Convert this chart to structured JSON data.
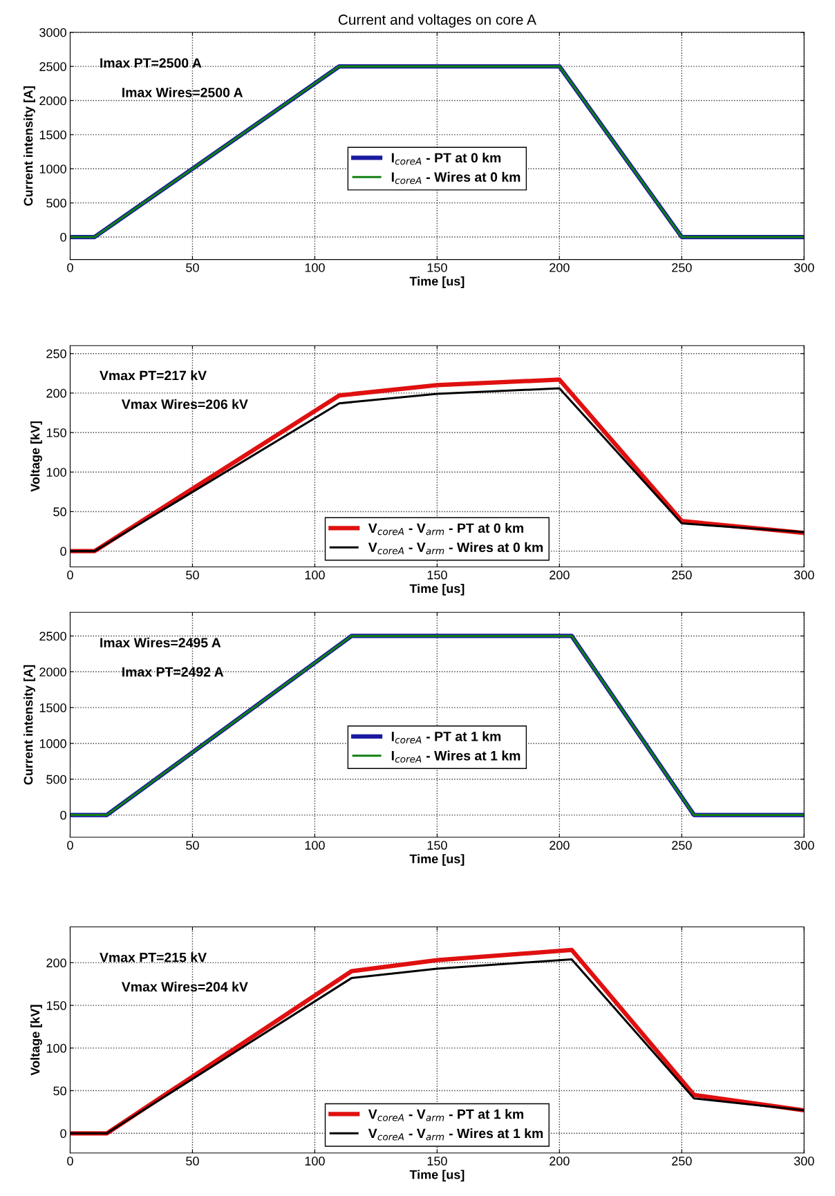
{
  "chart_data": [
    {
      "type": "line",
      "title": "Current and voltages on core A",
      "xlabel": "Time [us]",
      "ylabel": "Current intensity [A]",
      "xlim": [
        0,
        300
      ],
      "xticks": [
        0,
        50,
        100,
        150,
        200,
        250,
        300
      ],
      "ylim": [
        -330,
        3000
      ],
      "yticks": [
        0,
        500,
        1000,
        1500,
        2000,
        2500,
        3000
      ],
      "grid": true,
      "legend": "center",
      "line_style": "solid",
      "marker": "none",
      "annotations": [
        "Imax PT=2500 A",
        "Imax Wires=2500 A"
      ],
      "series": [
        {
          "name": "I$_{coreA}$ - PT at 0 km",
          "color": "#1a1aa0",
          "x": [
            0,
            10,
            110,
            200,
            250,
            300
          ],
          "values": [
            0,
            0,
            2500,
            2500,
            0,
            0
          ]
        },
        {
          "name": "I$_{coreA}$ - Wires at 0 km",
          "color": "#108010",
          "x": [
            0,
            10,
            110,
            200,
            250,
            300
          ],
          "values": [
            0,
            0,
            2500,
            2500,
            0,
            0
          ]
        }
      ]
    },
    {
      "type": "line",
      "xlabel": "Time [us]",
      "ylabel": "Voltage [kV]",
      "xlim": [
        0,
        300
      ],
      "xticks": [
        0,
        50,
        100,
        150,
        200,
        250,
        300
      ],
      "ylim": [
        -20,
        260
      ],
      "yticks": [
        0,
        50,
        100,
        150,
        200,
        250
      ],
      "grid": true,
      "legend": "lower center",
      "line_style": "solid",
      "marker": "none",
      "annotations": [
        "Vmax PT=217 kV",
        "Vmax Wires=206 kV"
      ],
      "series": [
        {
          "name": "V$_{coreA}$ - V$_{arm}$ - PT at 0 km",
          "color": "#e01010",
          "x": [
            0,
            10,
            110,
            150,
            200,
            250,
            300
          ],
          "values": [
            0,
            0,
            197,
            210,
            217,
            38,
            23
          ]
        },
        {
          "name": "V$_{coreA}$ - V$_{arm}$ - Wires at 0 km",
          "color": "#000000",
          "x": [
            0,
            10,
            110,
            150,
            200,
            250,
            300
          ],
          "values": [
            0,
            0,
            187,
            199,
            206,
            35,
            24
          ]
        }
      ]
    },
    {
      "type": "line",
      "xlabel": "Time [us]",
      "ylabel": "Current intensity [A]",
      "xlim": [
        0,
        300
      ],
      "xticks": [
        0,
        50,
        100,
        150,
        200,
        250,
        300
      ],
      "ylim": [
        -310,
        2830
      ],
      "yticks": [
        0,
        500,
        1000,
        1500,
        2000,
        2500
      ],
      "grid": true,
      "legend": "center",
      "line_style": "solid",
      "marker": "none",
      "annotations": [
        "Imax Wires=2495 A",
        "Imax PT=2492 A"
      ],
      "series": [
        {
          "name": "I$_{coreA}$ - PT at 1 km",
          "color": "#1a1aa0",
          "x": [
            0,
            15,
            115,
            205,
            255,
            300
          ],
          "values": [
            0,
            0,
            2500,
            2500,
            0,
            0
          ]
        },
        {
          "name": "I$_{coreA}$ - Wires at 1 km",
          "color": "#108010",
          "x": [
            0,
            15,
            115,
            205,
            255,
            300
          ],
          "values": [
            0,
            0,
            2500,
            2500,
            0,
            0
          ]
        }
      ]
    },
    {
      "type": "line",
      "xlabel": "Time [us]",
      "ylabel": "Voltage [kV]",
      "xlim": [
        0,
        300
      ],
      "xticks": [
        0,
        50,
        100,
        150,
        200,
        250,
        300
      ],
      "ylim": [
        -23,
        242
      ],
      "yticks": [
        0,
        50,
        100,
        150,
        200
      ],
      "grid": true,
      "legend": "lower center",
      "line_style": "solid",
      "marker": "none",
      "annotations": [
        "Vmax PT=215 kV",
        "Vmax Wires=204 kV"
      ],
      "series": [
        {
          "name": "V$_{coreA}$ - V$_{arm}$ - PT at 1 km",
          "color": "#e01010",
          "x": [
            0,
            15,
            115,
            150,
            205,
            255,
            300
          ],
          "values": [
            0,
            0,
            190,
            203,
            215,
            45,
            27
          ]
        },
        {
          "name": "V$_{coreA}$ - V$_{arm}$ - Wires at 1 km",
          "color": "#000000",
          "x": [
            0,
            15,
            115,
            150,
            205,
            255,
            300
          ],
          "values": [
            0,
            0,
            182,
            193,
            204,
            41,
            27
          ]
        }
      ]
    }
  ]
}
